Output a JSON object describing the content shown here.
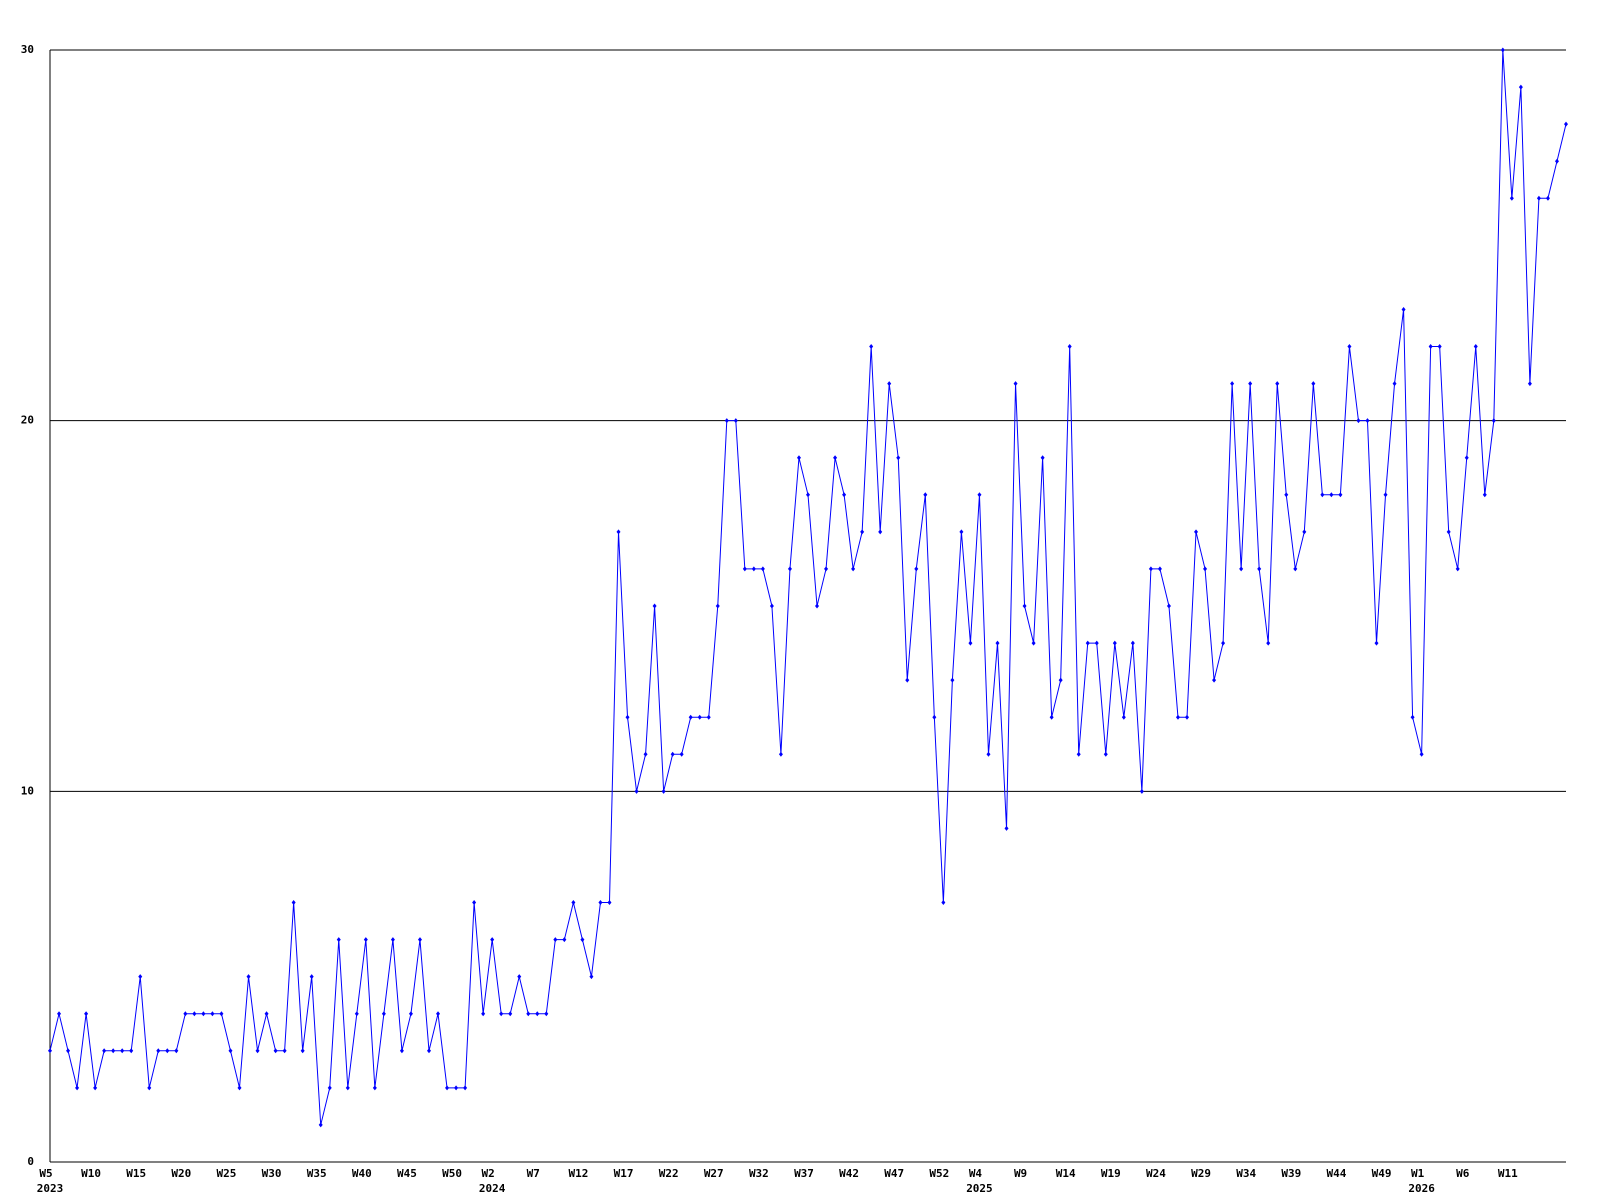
{
  "chart_data": {
    "type": "line",
    "categories": [
      "W5",
      null,
      null,
      null,
      null,
      "W10",
      null,
      null,
      null,
      null,
      "W15",
      null,
      null,
      null,
      null,
      "W20",
      null,
      null,
      null,
      null,
      "W25",
      null,
      null,
      null,
      null,
      "W30",
      null,
      null,
      null,
      null,
      "W35",
      null,
      null,
      null,
      null,
      "W40",
      null,
      null,
      null,
      null,
      "W45",
      null,
      null,
      null,
      null,
      "W50",
      null,
      null,
      null,
      "W2",
      null,
      null,
      null,
      null,
      "W7",
      null,
      null,
      null,
      null,
      "W12",
      null,
      null,
      null,
      null,
      "W17",
      null,
      null,
      null,
      null,
      "W22",
      null,
      null,
      null,
      null,
      "W27",
      null,
      null,
      null,
      null,
      "W32",
      null,
      null,
      null,
      null,
      "W37",
      null,
      null,
      null,
      null,
      "W42",
      null,
      null,
      null,
      null,
      "W47",
      null,
      null,
      null,
      null,
      "W52",
      null,
      null,
      null,
      "W4",
      null,
      null,
      null,
      null,
      "W9",
      null,
      null,
      null,
      null,
      "W14",
      null,
      null,
      null,
      null,
      "W19",
      null,
      null,
      null,
      null,
      "W24",
      null,
      null,
      null,
      null,
      "W29",
      null,
      null,
      null,
      null,
      "W34",
      null,
      null,
      null,
      null,
      "W39",
      null,
      null,
      null,
      null,
      "W44",
      null,
      null,
      null,
      null,
      "W49",
      null,
      null,
      null,
      "W1",
      null,
      null,
      null,
      null,
      "W6",
      null,
      null,
      null,
      null,
      "W11",
      null,
      null,
      null,
      null,
      null,
      null
    ],
    "year_labels": [
      "2023",
      null,
      null,
      null,
      null,
      null,
      null,
      null,
      null,
      null,
      null,
      null,
      null,
      null,
      null,
      null,
      null,
      null,
      null,
      null,
      null,
      null,
      null,
      null,
      null,
      null,
      null,
      null,
      null,
      null,
      null,
      null,
      null,
      null,
      null,
      null,
      null,
      null,
      null,
      null,
      null,
      null,
      null,
      null,
      null,
      null,
      null,
      null,
      null,
      "2024",
      null,
      null,
      null,
      null,
      null,
      null,
      null,
      null,
      null,
      null,
      null,
      null,
      null,
      null,
      null,
      null,
      null,
      null,
      null,
      null,
      null,
      null,
      null,
      null,
      null,
      null,
      null,
      null,
      null,
      null,
      null,
      null,
      null,
      null,
      null,
      null,
      null,
      null,
      null,
      null,
      null,
      null,
      null,
      null,
      null,
      null,
      null,
      null,
      null,
      null,
      null,
      null,
      null,
      "2025",
      null,
      null,
      null,
      null,
      null,
      null,
      null,
      null,
      null,
      null,
      null,
      null,
      null,
      null,
      null,
      null,
      null,
      null,
      null,
      null,
      null,
      null,
      null,
      null,
      null,
      null,
      null,
      null,
      null,
      null,
      null,
      null,
      null,
      null,
      null,
      null,
      null,
      null,
      null,
      null,
      null,
      null,
      null,
      null,
      null,
      null,
      null,
      null,
      "2026",
      null,
      null,
      null,
      null,
      null,
      null,
      null,
      null,
      null,
      null,
      null,
      null,
      null,
      null,
      null,
      null
    ],
    "series": [
      {
        "color": "#0000ff",
        "values": [
          3,
          4,
          3,
          2,
          4,
          2,
          3,
          3,
          3,
          3,
          5,
          2,
          3,
          3,
          3,
          4,
          4,
          4,
          4,
          4,
          3,
          2,
          5,
          3,
          4,
          3,
          3,
          7,
          3,
          5,
          1,
          2,
          6,
          2,
          4,
          6,
          2,
          4,
          6,
          3,
          4,
          6,
          3,
          4,
          2,
          2,
          2,
          7,
          4,
          6,
          4,
          4,
          5,
          4,
          4,
          4,
          6,
          6,
          7,
          6,
          5,
          7,
          7,
          17,
          12,
          10,
          11,
          15,
          10,
          11,
          11,
          12,
          12,
          12,
          15,
          20,
          20,
          16,
          16,
          16,
          15,
          11,
          16,
          19,
          18,
          15,
          16,
          19,
          18,
          16,
          17,
          22,
          17,
          21,
          19,
          13,
          16,
          18,
          12,
          7,
          13,
          17,
          14,
          18,
          11,
          14,
          9,
          21,
          15,
          14,
          19,
          12,
          13,
          22,
          11,
          14,
          14,
          11,
          14,
          12,
          14,
          10,
          16,
          16,
          15,
          12,
          12,
          17,
          16,
          13,
          14,
          21,
          16,
          21,
          16,
          14,
          21,
          18,
          16,
          17,
          21,
          18,
          18,
          18,
          22,
          20,
          20,
          14,
          18,
          21,
          23,
          12,
          11,
          22,
          22,
          17,
          16,
          19,
          22,
          18,
          20,
          30,
          26,
          29,
          21,
          26,
          26,
          27,
          28
        ]
      }
    ],
    "ylim": [
      0,
      30
    ],
    "yticks": [
      0,
      10,
      20,
      30
    ],
    "grid": true
  }
}
